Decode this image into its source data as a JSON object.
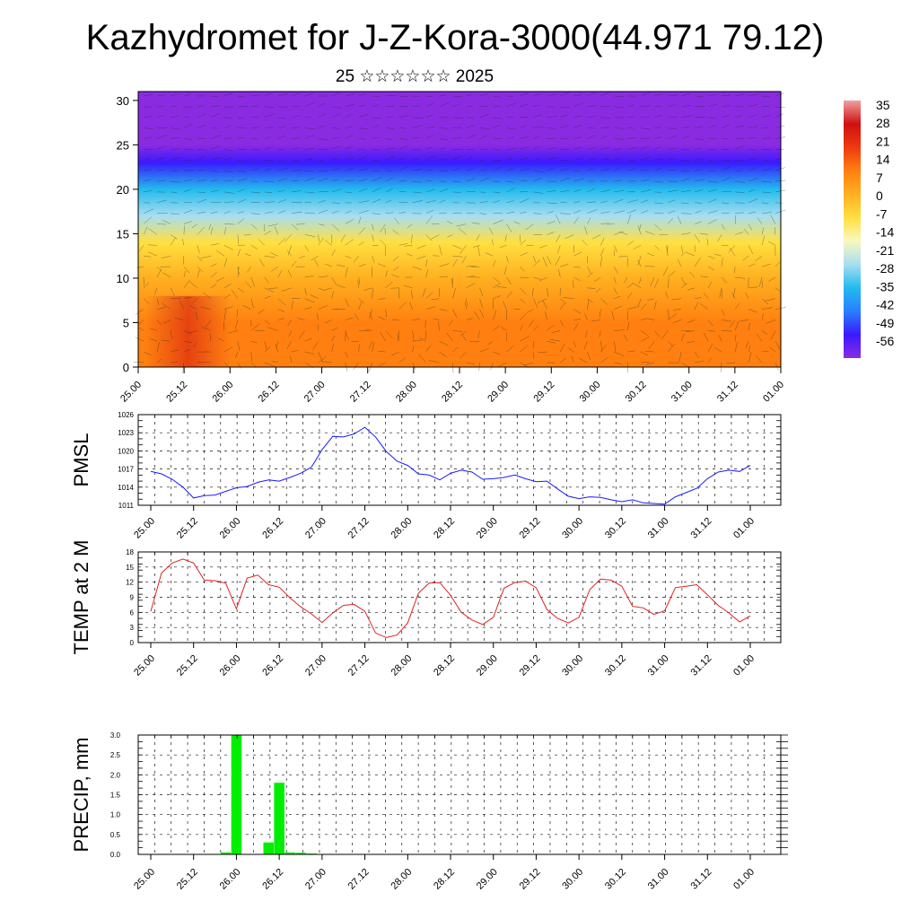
{
  "header": {
    "title": "Kazhydromet for J-Z-Kora-3000(44.971 79.12)",
    "subtitle": "25 ☆☆☆☆☆☆ 2025"
  },
  "colors": {
    "pmsl_line": "#1a1aff",
    "temp_line": "#e02020",
    "precip_bar": "#00ee00",
    "colormap": [
      "#8a2be2",
      "#3a1aff",
      "#2a7fff",
      "#22bbee",
      "#a8def0",
      "#f8f8c0",
      "#ffe040",
      "#ffb020",
      "#ff8010",
      "#ee3a10",
      "#d01010",
      "#f0a0a0"
    ]
  },
  "chart_data": [
    {
      "type": "heatmap",
      "title": "",
      "ylabel": "",
      "ylim": [
        0,
        31
      ],
      "yticks": [
        "0",
        "5",
        "10",
        "15",
        "20",
        "25",
        "30"
      ],
      "x_ticks": [
        "25.00",
        "25.12",
        "26.00",
        "26.12",
        "27.00",
        "27.12",
        "28.00",
        "28.12",
        "29.00",
        "29.12",
        "30.00",
        "30.12",
        "31.00",
        "31.12",
        "01.00"
      ],
      "colorbar_labels": [
        "35",
        "28",
        "21",
        "14",
        "7",
        "0",
        "-7",
        "-14",
        "-21",
        "-28",
        "-35",
        "-42",
        "-49",
        "-56"
      ],
      "overlay": "wind vectors and contour lines",
      "layers": [
        {
          "level": 0,
          "value": 14
        },
        {
          "level": 5,
          "value": 9
        },
        {
          "level": 10,
          "value": 4
        },
        {
          "level": 14,
          "value": -7
        },
        {
          "level": 17,
          "value": -21
        },
        {
          "level": 20,
          "value": -35
        },
        {
          "level": 23,
          "value": -49
        },
        {
          "level": 25,
          "value": -56
        },
        {
          "level": 31,
          "value": -52
        }
      ]
    },
    {
      "type": "line",
      "ylabel": "PMSL",
      "ylim": [
        1011,
        1026
      ],
      "yticks": [
        "1011",
        "1014",
        "1017",
        "1020",
        "1023",
        "1026"
      ],
      "x_ticks": [
        "25.00",
        "25.12",
        "26.00",
        "26.12",
        "27.00",
        "27.12",
        "28.00",
        "28.12",
        "29.00",
        "29.12",
        "30.00",
        "30.12",
        "31.00",
        "31.12",
        "01.00"
      ],
      "series": [
        {
          "values": [
            1016.6,
            1016.2,
            1015.3,
            1014.0,
            1012.2,
            1012.6,
            1012.7,
            1013.3,
            1013.9,
            1014.1,
            1014.8,
            1015.2,
            1015.0,
            1015.6,
            1016.3,
            1017.3,
            1020.2,
            1022.4,
            1022.3,
            1022.8,
            1023.9,
            1022.3,
            1019.9,
            1018.3,
            1017.6,
            1016.2,
            1016.0,
            1015.2,
            1016.3,
            1016.8,
            1016.5,
            1015.3,
            1015.4,
            1015.6,
            1016.0,
            1015.4,
            1014.9,
            1015.0,
            1013.7,
            1012.5,
            1012.1,
            1012.4,
            1012.3,
            1011.9,
            1011.6,
            1011.9,
            1011.4,
            1011.3,
            1011.2,
            1012.4,
            1013.1,
            1013.8,
            1015.4,
            1016.5,
            1016.8,
            1016.6,
            1017.6
          ]
        }
      ]
    },
    {
      "type": "line",
      "ylabel": "TEMP at 2 M",
      "ylim": [
        0,
        18
      ],
      "yticks": [
        "0",
        "3",
        "6",
        "9",
        "12",
        "15",
        "18"
      ],
      "x_ticks": [
        "25.00",
        "25.12",
        "26.00",
        "26.12",
        "27.00",
        "27.12",
        "28.00",
        "28.12",
        "29.00",
        "29.12",
        "30.00",
        "30.12",
        "31.00",
        "31.12",
        "01.00"
      ],
      "series": [
        {
          "values": [
            6.2,
            13.8,
            15.8,
            16.6,
            15.8,
            12.4,
            12.3,
            11.8,
            6.7,
            12.8,
            13.4,
            11.5,
            11.0,
            8.9,
            7.1,
            5.7,
            4.0,
            5.9,
            7.4,
            7.6,
            6.2,
            1.9,
            1.0,
            1.5,
            3.9,
            9.8,
            11.8,
            11.9,
            9.4,
            6.0,
            4.5,
            3.6,
            5.0,
            10.8,
            11.9,
            12.2,
            10.9,
            6.6,
            4.8,
            3.9,
            5.0,
            10.5,
            12.6,
            12.4,
            11.2,
            7.2,
            6.9,
            5.6,
            6.3,
            10.9,
            11.2,
            11.5,
            9.5,
            7.4,
            5.9,
            4.1,
            5.3
          ]
        }
      ]
    },
    {
      "type": "bar",
      "ylabel": "PRECIP, mm",
      "ylim": [
        0,
        3
      ],
      "yticks": [
        "0.0",
        "0.5",
        "1.0",
        "1.5",
        "2.0",
        "2.5",
        "3.0"
      ],
      "x_ticks": [
        "25.00",
        "25.12",
        "26.00",
        "26.12",
        "27.00",
        "27.12",
        "28.00",
        "28.12",
        "29.00",
        "29.12",
        "30.00",
        "30.12",
        "31.00",
        "31.12",
        "01.00"
      ],
      "values": [
        0,
        0,
        0,
        0,
        0,
        0,
        0,
        0.05,
        3.0,
        0,
        0,
        0.3,
        1.8,
        0.05,
        0.04,
        0.02,
        0,
        0,
        0,
        0,
        0,
        0,
        0,
        0,
        0,
        0,
        0,
        0,
        0,
        0,
        0,
        0,
        0,
        0,
        0,
        0,
        0,
        0,
        0,
        0,
        0,
        0,
        0,
        0,
        0,
        0,
        0,
        0,
        0,
        0,
        0,
        0,
        0,
        0,
        0,
        0,
        0
      ]
    }
  ]
}
